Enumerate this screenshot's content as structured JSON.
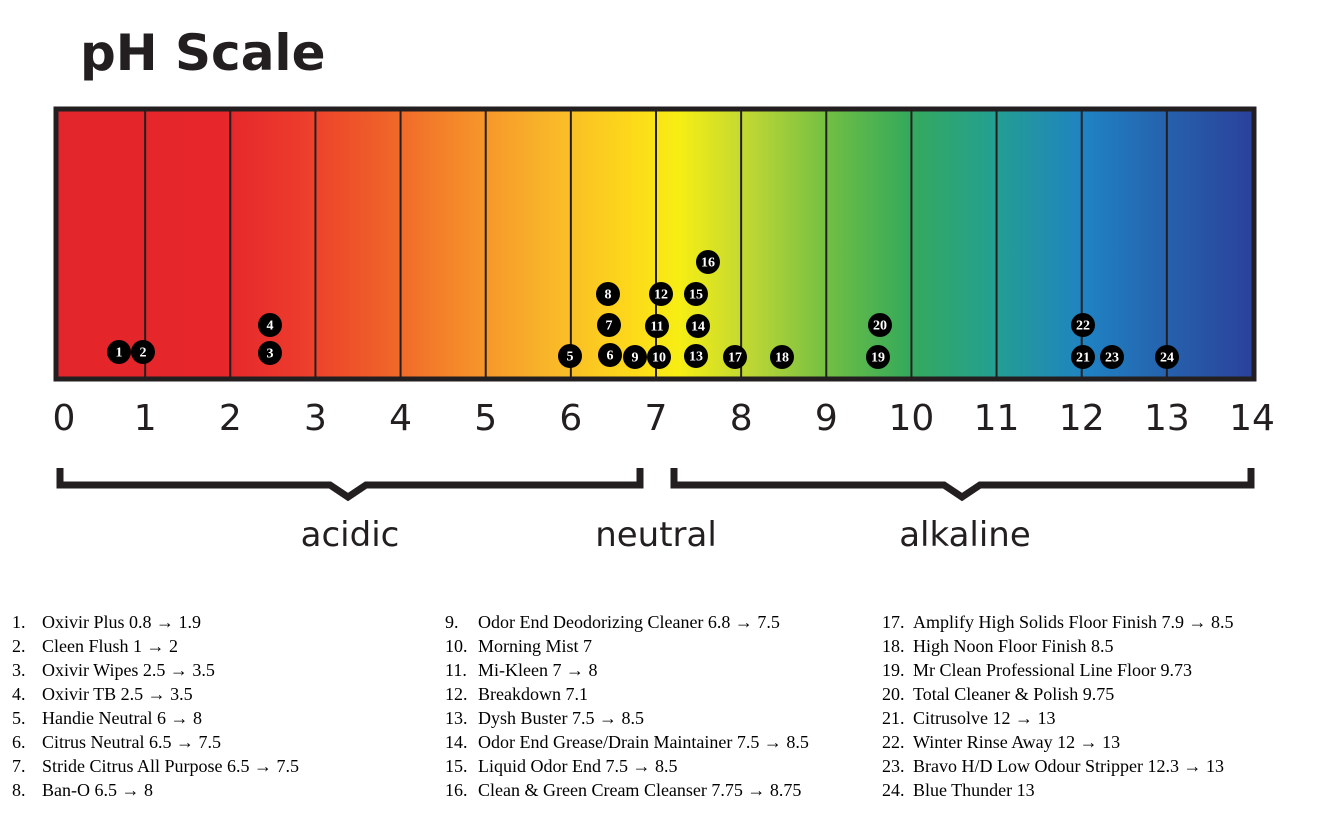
{
  "title": "pH Scale",
  "scale": {
    "ticks": [
      0,
      1,
      2,
      3,
      4,
      5,
      6,
      7,
      8,
      9,
      10,
      11,
      12,
      13,
      14
    ]
  },
  "ranges": [
    "acidic",
    "neutral",
    "alkaline"
  ],
  "markers": [
    "1",
    "2",
    "3",
    "4",
    "5",
    "6",
    "7",
    "8",
    "9",
    "10",
    "11",
    "12",
    "13",
    "14",
    "15",
    "16",
    "17",
    "18",
    "19",
    "20",
    "21",
    "22",
    "23",
    "24"
  ],
  "items": [
    {
      "number": "1.",
      "text": "Oxivir Plus 0.8 → 1.9"
    },
    {
      "number": "2.",
      "text": "Cleen Flush 1 → 2"
    },
    {
      "number": "3.",
      "text": "Oxivir Wipes 2.5 → 3.5"
    },
    {
      "number": "4.",
      "text": "Oxivir TB 2.5 → 3.5"
    },
    {
      "number": "5.",
      "text": "Handie Neutral 6 → 8"
    },
    {
      "number": "6.",
      "text": "Citrus Neutral 6.5 → 7.5"
    },
    {
      "number": "7.",
      "text": "Stride Citrus All Purpose 6.5 → 7.5"
    },
    {
      "number": "8.",
      "text": "Ban-O 6.5 → 8"
    },
    {
      "number": "9.",
      "text": "Odor End Deodorizing Cleaner 6.8 → 7.5"
    },
    {
      "number": "10.",
      "text": "Morning Mist 7"
    },
    {
      "number": "11.",
      "text": "Mi-Kleen 7 → 8"
    },
    {
      "number": "12.",
      "text": "Breakdown 7.1"
    },
    {
      "number": "13.",
      "text": "Dysh Buster 7.5 → 8.5"
    },
    {
      "number": "14.",
      "text": "Odor End Grease/Drain Maintainer 7.5 → 8.5"
    },
    {
      "number": "15.",
      "text": "Liquid Odor End 7.5 → 8.5"
    },
    {
      "number": "16.",
      "text": "Clean & Green Cream Cleanser 7.75 → 8.75"
    },
    {
      "number": "17.",
      "text": "Amplify High Solids Floor Finish 7.9 → 8.5"
    },
    {
      "number": "18.",
      "text": "High Noon Floor Finish 8.5"
    },
    {
      "number": "19.",
      "text": "Mr Clean Professional Line Floor 9.73"
    },
    {
      "number": "20.",
      "text": "Total Cleaner & Polish 9.75"
    },
    {
      "number": "21.",
      "text": "Citrusolve 12 → 13"
    },
    {
      "number": "22.",
      "text": "Winter Rinse Away 12 → 13"
    },
    {
      "number": "23.",
      "text": "Bravo H/D Low Odour Stripper 12.3 → 13"
    },
    {
      "number": "24.",
      "text": "Blue Thunder 13"
    }
  ]
}
